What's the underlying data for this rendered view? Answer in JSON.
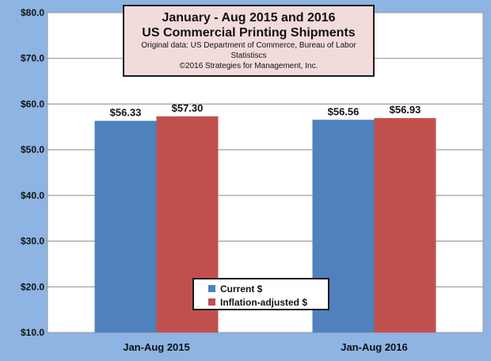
{
  "colors": {
    "background": "#8DB4E2",
    "plot_area": "#FFFFFF",
    "current": "#4F81BD",
    "inflation_adjusted": "#C0504D",
    "title_box": "#F2DCDB"
  },
  "title": {
    "line1": "January - Aug 2015 and 2016",
    "line2": "US Commercial Printing Shipments",
    "line3": "Original data: US Department of Commerce, Bureau of Labor Statistiscs",
    "line4": "©2016 Strategies for Management, Inc."
  },
  "legend": {
    "items": [
      {
        "label": "Current $",
        "color": "#4F81BD"
      },
      {
        "label": "Inflation-adjusted $",
        "color": "#C0504D"
      }
    ]
  },
  "chart_data": {
    "type": "bar",
    "title": "January - Aug 2015 and 2016 US Commercial Printing Shipments",
    "categories": [
      "Jan-Aug 2015",
      "Jan-Aug 2016"
    ],
    "series": [
      {
        "name": "Current $",
        "values": [
          56.33,
          56.56
        ],
        "labels": [
          "$56.33",
          "$56.56"
        ],
        "color": "#4F81BD"
      },
      {
        "name": "Inflation-adjusted $",
        "values": [
          57.3,
          56.93
        ],
        "labels": [
          "$57.30",
          "$56.93"
        ],
        "color": "#C0504D"
      }
    ],
    "ylim": [
      10,
      80
    ],
    "yticks": [
      10,
      20,
      30,
      40,
      50,
      60,
      70,
      80
    ],
    "ytick_labels": [
      "$10.0",
      "$20.0",
      "$30.0",
      "$40.0",
      "$50.0",
      "$60.0",
      "$70.0",
      "$80.0"
    ],
    "xlabel": "",
    "ylabel": "",
    "grid": true,
    "legend_position": "bottom-center"
  }
}
